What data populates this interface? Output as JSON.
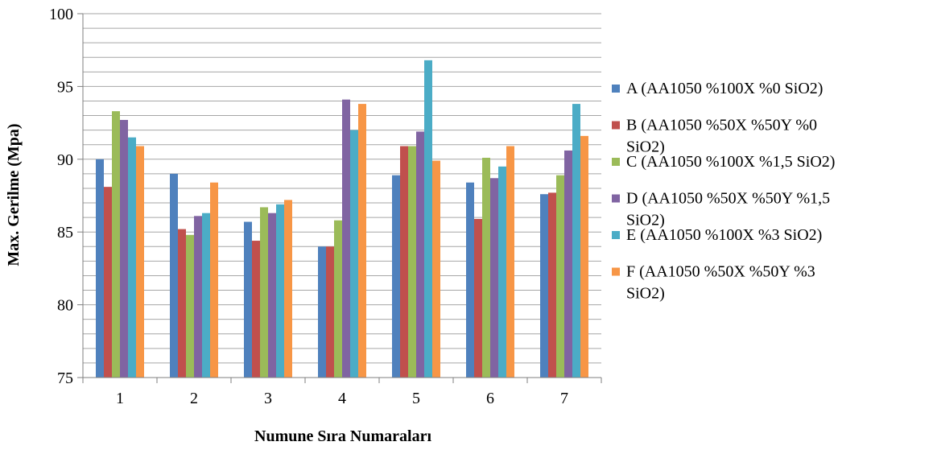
{
  "chart_data": {
    "type": "bar",
    "categories": [
      "1",
      "2",
      "3",
      "4",
      "5",
      "6",
      "7"
    ],
    "series": [
      {
        "name": "A (AA1050 %100X %0 SiO2)",
        "color": "#4F81BD",
        "values": [
          90.0,
          89.0,
          85.7,
          84.0,
          88.9,
          88.4,
          87.6
        ]
      },
      {
        "name": "B  (AA1050 %50X %50Y %0 SiO2)",
        "color": "#C0504D",
        "values": [
          88.1,
          85.2,
          84.4,
          84.0,
          90.9,
          85.9,
          87.7
        ]
      },
      {
        "name": "C (AA1050 %100X %1,5 SiO2)",
        "color": "#9BBB59",
        "values": [
          93.3,
          84.8,
          86.7,
          85.8,
          90.9,
          90.1,
          88.9
        ]
      },
      {
        "name": "D (AA1050 %50X %50Y %1,5 SiO2)",
        "color": "#8064A2",
        "values": [
          92.7,
          86.1,
          86.3,
          94.1,
          91.9,
          88.7,
          90.6
        ]
      },
      {
        "name": "E  (AA1050 %100X %3 SiO2)",
        "color": "#4BACC6",
        "values": [
          91.5,
          86.3,
          86.9,
          92.0,
          96.8,
          89.5,
          93.8
        ]
      },
      {
        "name": "F  (AA1050 %50X %50Y %3 SiO2)",
        "color": "#F79646",
        "values": [
          90.9,
          88.4,
          87.2,
          93.8,
          89.9,
          90.9,
          91.6
        ]
      }
    ],
    "legend_lines": [
      [
        "A (AA1050 %100X %0 SiO2)"
      ],
      [
        "B  (AA1050 %50X %50Y %0",
        "SiO2)"
      ],
      [
        "C (AA1050 %100X %1,5 SiO2)"
      ],
      [
        "D (AA1050 %50X %50Y %1,5",
        "SiO2)"
      ],
      [
        "E  (AA1050 %100X %3 SiO2)"
      ],
      [
        "F  (AA1050 %50X %50Y %3",
        "SiO2)"
      ]
    ],
    "xlabel": "Numune Sıra Numaraları",
    "ylabel": "Max. Gerilme (Mpa)",
    "ylim": [
      75,
      100
    ],
    "yticks": [
      75,
      80,
      85,
      90,
      95,
      100
    ],
    "minor_grid_step": 1,
    "grid": true,
    "legend_position": "right"
  }
}
